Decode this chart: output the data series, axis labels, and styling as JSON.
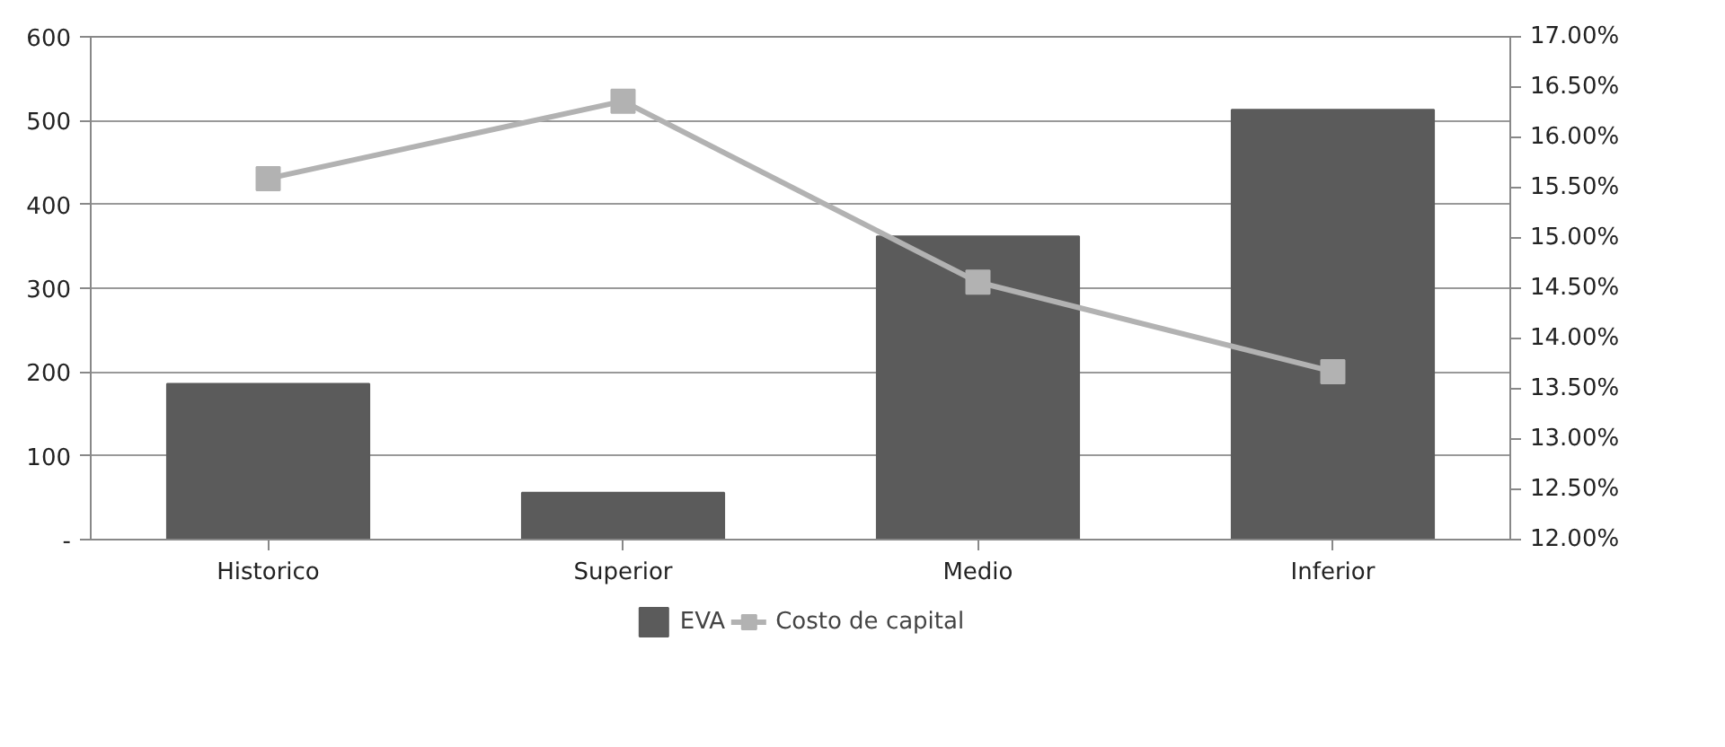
{
  "chart_data": {
    "type": "bar",
    "categories": [
      "Historico",
      "Superior",
      "Medio",
      "Inferior"
    ],
    "series": [
      {
        "name": "EVA",
        "color": "#5b5b5b",
        "values": [
          186,
          56,
          362,
          513
        ]
      },
      {
        "name": "Costo de capital",
        "type": "line",
        "axis": "y2",
        "color": "#b2b2b2",
        "marker": "square",
        "values": [
          15.59,
          16.36,
          14.56,
          13.67
        ]
      }
    ],
    "ylim": [
      0,
      600
    ],
    "yticks": [
      {
        "value": 0,
        "label": "-"
      },
      100,
      200,
      300,
      400,
      500,
      600
    ],
    "y2lim": [
      12,
      17
    ],
    "y2ticks": [
      {
        "value": 12,
        "label": "12.00%"
      },
      {
        "value": 12.5,
        "label": "12.50%"
      },
      {
        "value": 13,
        "label": "13.00%"
      },
      {
        "value": 13.5,
        "label": "13.50%"
      },
      {
        "value": 14,
        "label": "14.00%"
      },
      {
        "value": 14.5,
        "label": "14.50%"
      },
      {
        "value": 15,
        "label": "15.00%"
      },
      {
        "value": 15.5,
        "label": "15.50%"
      },
      {
        "value": 16,
        "label": "16.00%"
      },
      {
        "value": 16.5,
        "label": "16.50%"
      },
      {
        "value": 17,
        "label": "17.00%"
      }
    ],
    "grid": "y",
    "legend": "bottom"
  }
}
